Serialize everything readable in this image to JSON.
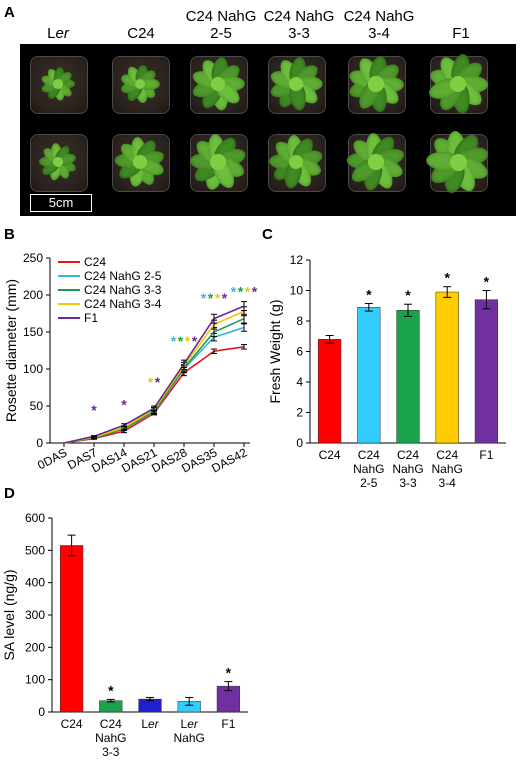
{
  "panels": {
    "A": "A",
    "B": "B",
    "C": "C",
    "D": "D"
  },
  "panelA": {
    "genotypes": [
      {
        "line1": "",
        "line2": "Ler"
      },
      {
        "line1": "",
        "line2": "C24"
      },
      {
        "line1": "C24 NahG",
        "line2": "2-5"
      },
      {
        "line1": "C24 NahG",
        "line2": "3-3"
      },
      {
        "line1": "C24 NahG",
        "line2": "3-4"
      },
      {
        "line1": "",
        "line2": "F1"
      }
    ],
    "scale_bar": "5cm",
    "plant_sizes": [
      [
        0.55,
        0.62,
        0.85,
        0.85,
        0.9,
        0.95
      ],
      [
        0.6,
        0.8,
        0.9,
        0.85,
        0.92,
        1.0
      ]
    ]
  },
  "chart_data": [
    {
      "type": "line",
      "panel": "B",
      "ylabel": "Rosette diameter  (mm)",
      "xlabel": "",
      "categories": [
        "0DAS",
        "DAS7",
        "DAS14",
        "DAS21",
        "DAS28",
        "DAS35",
        "DAS42"
      ],
      "ylim": [
        0,
        250
      ],
      "yticks": [
        0,
        50,
        100,
        150,
        200,
        250
      ],
      "legend": "top-left",
      "series": [
        {
          "name": "C24",
          "color": "#e8141c",
          "values": [
            0,
            6,
            16,
            40,
            95,
            124,
            130
          ],
          "errors": [
            0,
            1,
            2,
            2,
            4,
            3,
            3
          ]
        },
        {
          "name": "C24 NahG 2-5",
          "color": "#38b6e8",
          "values": [
            0,
            7,
            19,
            42,
            100,
            143,
            156
          ],
          "errors": [
            0,
            1,
            2,
            3,
            5,
            5,
            5
          ]
        },
        {
          "name": "C24 NahG 3-3",
          "color": "#1a9e4a",
          "values": [
            0,
            7,
            19,
            43,
            101,
            150,
            168
          ],
          "errors": [
            0,
            1,
            2,
            3,
            5,
            6,
            6
          ]
        },
        {
          "name": "C24 NahG 3-4",
          "color": "#f5c400",
          "values": [
            0,
            8,
            21,
            45,
            104,
            160,
            178
          ],
          "errors": [
            0,
            1,
            2,
            3,
            5,
            6,
            6
          ]
        },
        {
          "name": "F1",
          "color": "#6a2c91",
          "values": [
            0,
            9,
            24,
            47,
            107,
            168,
            185
          ],
          "errors": [
            0,
            1,
            2,
            3,
            5,
            6,
            6
          ]
        }
      ],
      "significance": [
        {
          "category": "DAS7",
          "y": 38,
          "colors": [
            "#6a2c91"
          ]
        },
        {
          "category": "DAS14",
          "y": 45,
          "colors": [
            "#6a2c91"
          ]
        },
        {
          "category": "DAS21",
          "y": 76,
          "colors": [
            "#f5c400",
            "#6a2c91"
          ]
        },
        {
          "category": "DAS28",
          "y": 131,
          "colors": [
            "#38b6e8",
            "#1a9e4a",
            "#f5c400",
            "#6a2c91"
          ]
        },
        {
          "category": "DAS35",
          "y": 189,
          "colors": [
            "#38b6e8",
            "#1a9e4a",
            "#f5c400",
            "#6a2c91"
          ]
        },
        {
          "category": "DAS42",
          "y": 198,
          "colors": [
            "#38b6e8",
            "#1a9e4a",
            "#f5c400",
            "#6a2c91"
          ]
        }
      ],
      "star": "*"
    },
    {
      "type": "bar",
      "panel": "C",
      "ylabel": "Fresh Weight  (g)",
      "xlabel": "",
      "categories": [
        {
          "lines": [
            "C24"
          ]
        },
        {
          "lines": [
            "C24",
            "NahG",
            "2-5"
          ]
        },
        {
          "lines": [
            "C24",
            "NahG",
            "3-3"
          ]
        },
        {
          "lines": [
            "C24",
            "NahG",
            "3-4"
          ]
        },
        {
          "lines": [
            "F1"
          ]
        }
      ],
      "values": [
        6.8,
        8.9,
        8.7,
        9.9,
        9.4
      ],
      "errors": [
        0.25,
        0.25,
        0.4,
        0.35,
        0.6
      ],
      "colors": [
        "#ff0000",
        "#33ccff",
        "#1aa34a",
        "#ffcc00",
        "#7030a0"
      ],
      "significant": [
        false,
        true,
        true,
        true,
        true
      ],
      "ylim": [
        0,
        12
      ],
      "yticks": [
        0,
        2,
        4,
        6,
        8,
        10,
        12
      ],
      "star": "*"
    },
    {
      "type": "bar",
      "panel": "D",
      "ylabel": "SA level  (ng/g)",
      "xlabel": "",
      "categories": [
        {
          "lines": [
            "C24"
          ]
        },
        {
          "lines": [
            "C24",
            "NahG",
            "3-3"
          ]
        },
        {
          "lines": [
            "Ler"
          ]
        },
        {
          "lines": [
            "Ler",
            "NahG"
          ]
        },
        {
          "lines": [
            "F1"
          ]
        }
      ],
      "values": [
        515,
        35,
        40,
        33,
        80
      ],
      "errors": [
        32,
        4,
        5,
        12,
        14
      ],
      "colors": [
        "#ff0000",
        "#1aa34a",
        "#1f1fd0",
        "#33ccff",
        "#7030a0"
      ],
      "significant": [
        false,
        true,
        false,
        false,
        true
      ],
      "ylim": [
        0,
        600
      ],
      "yticks": [
        0,
        100,
        200,
        300,
        400,
        500,
        600
      ],
      "star": "*"
    }
  ]
}
